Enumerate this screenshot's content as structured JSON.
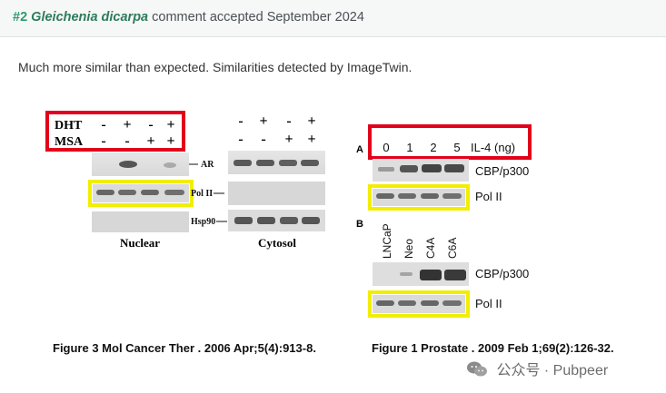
{
  "header": {
    "number": "#2",
    "species": "Gleichenia dicarpa",
    "rest": "comment accepted September 2024"
  },
  "comment": {
    "text": "Much more similar than expected. Similarities detected by ImageTwin."
  },
  "left_figure": {
    "row1_label": "DHT",
    "row1_signs": [
      "-",
      "+",
      "-",
      "+"
    ],
    "row2_label": "MSA",
    "row2_signs": [
      "-",
      "-",
      "+",
      "+"
    ],
    "cyto_row1_signs": [
      "-",
      "+",
      "-",
      "+"
    ],
    "cyto_row2_signs": [
      "-",
      "-",
      "+",
      "+"
    ],
    "band_labels": [
      "AR",
      "Pol II",
      "Hsp90"
    ],
    "panel_labels": [
      "Nuclear",
      "Cytosol"
    ]
  },
  "right_figure": {
    "panel_a": "A",
    "panel_b": "B",
    "doses": [
      "0",
      "1",
      "2",
      "5"
    ],
    "dose_label": "IL-4 (ng)",
    "cell_lines": [
      "LNCaP",
      "Neo",
      "C4A",
      "C6A"
    ],
    "band_labels_a": [
      "CBP/p300",
      "Pol II"
    ],
    "band_labels_b": [
      "CBP/p300",
      "Pol II"
    ]
  },
  "captions": {
    "left": "Figure 3 Mol Cancer Ther . 2006 Apr;5(4):913-8.",
    "right": "Figure 1 Prostate . 2009 Feb 1;69(2):126-32."
  },
  "watermark": "公众号 · Pubpeer",
  "colors": {
    "highlight_red": "#e3001b",
    "highlight_yellow": "#f2ee00",
    "accent_green": "#2d9b6c"
  }
}
